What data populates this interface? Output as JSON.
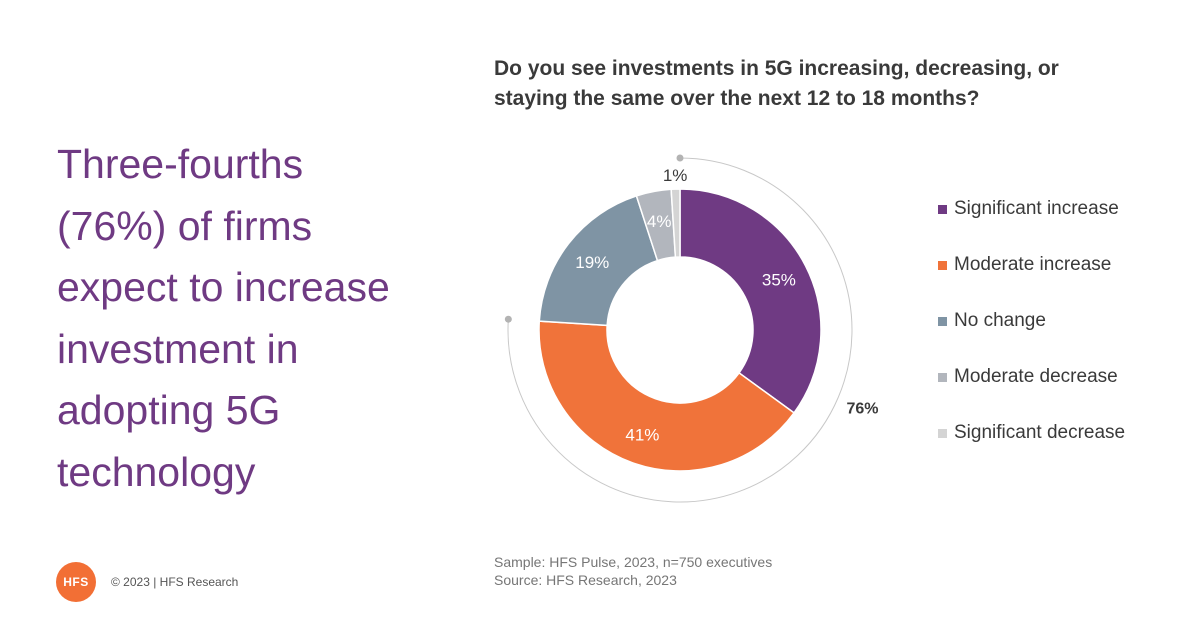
{
  "headline": "Three-fourths\n(76%) of firms\nexpect to increase\ninvestment in\nadopting 5G\ntechnology",
  "chart_data": {
    "type": "pie",
    "title": "Do you see investments in 5G increasing, decreasing, or\nstaying the same over the next 12 to 18 months?",
    "donut": true,
    "categories": [
      "Significant increase",
      "Moderate increase",
      "No change",
      "Moderate decrease",
      "Significant decrease"
    ],
    "values": [
      35,
      41,
      19,
      4,
      1
    ],
    "value_labels": [
      "35%",
      "41%",
      "19%",
      "4%",
      "1%"
    ],
    "colors": [
      "#6f3a83",
      "#f0733a",
      "#7f94a4",
      "#b2b6bd",
      "#d4d4d4"
    ],
    "annotation": "76%",
    "legend_position": "right"
  },
  "footnote": {
    "sample": "Sample: HFS Pulse, 2023, n=750 executives",
    "source": "Source: HFS Research, 2023"
  },
  "footer": {
    "logo_text": "HFS",
    "copyright": "© 2023 | HFS Research"
  }
}
